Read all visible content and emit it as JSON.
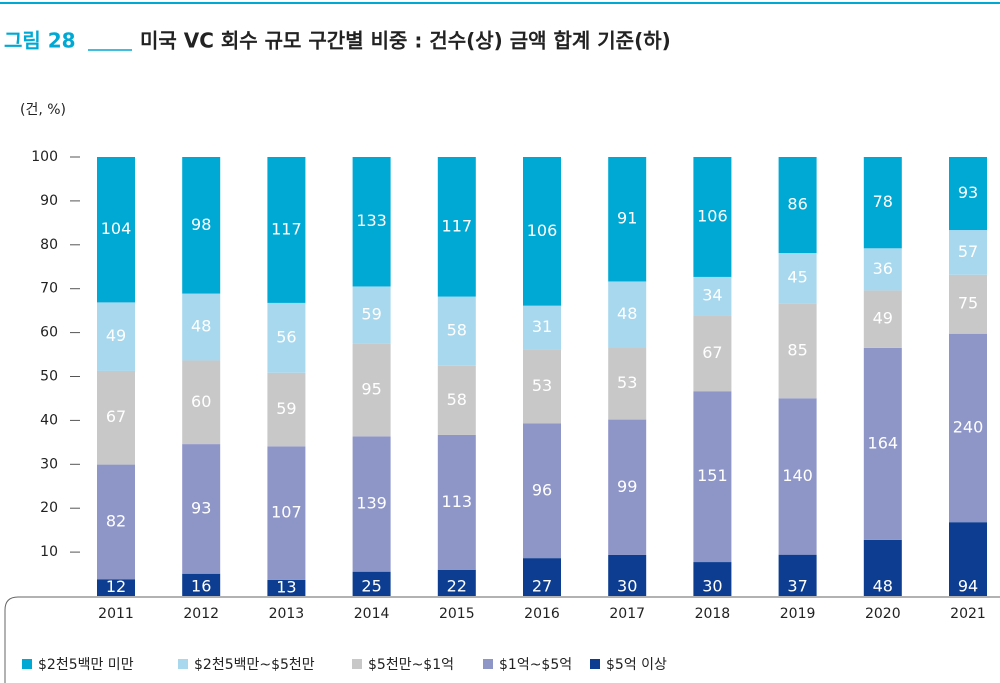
{
  "chart_data": {
    "type": "bar",
    "stack": "percent",
    "figure_label": "그림 28",
    "title": "미국 VC 회수 규모 구간별 비중 : 건수(상) 금액 합계 기준(하)",
    "unit_label": "(건, %)",
    "categories": [
      "2011",
      "2012",
      "2013",
      "2014",
      "2015",
      "2016",
      "2017",
      "2018",
      "2019",
      "2020",
      "2021"
    ],
    "series": [
      {
        "name": "$2천5백만 미만",
        "color": "#00a9d4",
        "values": [
          104,
          98,
          117,
          133,
          117,
          106,
          91,
          106,
          86,
          78,
          93
        ]
      },
      {
        "name": "$2천5백만~$5천만",
        "color": "#a8d8ee",
        "values": [
          49,
          48,
          56,
          59,
          58,
          31,
          48,
          34,
          45,
          36,
          57
        ]
      },
      {
        "name": "$5천만~$1억",
        "color": "#c8c8c8",
        "values": [
          67,
          60,
          59,
          95,
          58,
          53,
          53,
          67,
          85,
          49,
          75
        ]
      },
      {
        "name": "$1억~$5억",
        "color": "#8e96c8",
        "values": [
          82,
          93,
          107,
          139,
          113,
          96,
          99,
          151,
          140,
          164,
          240
        ]
      },
      {
        "name": "$5억 이상",
        "color": "#0c3d91",
        "values": [
          12,
          16,
          13,
          25,
          22,
          27,
          30,
          30,
          37,
          48,
          94
        ]
      }
    ],
    "ylim": [
      0,
      100
    ],
    "yticks": [
      10,
      20,
      30,
      40,
      50,
      60,
      70,
      80,
      90,
      100
    ],
    "legend": "bottom"
  }
}
